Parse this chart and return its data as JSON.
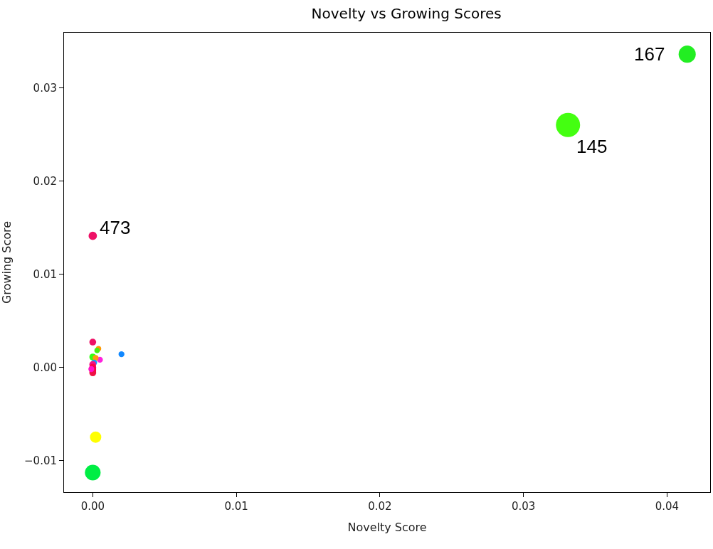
{
  "chart_data": {
    "type": "bubble",
    "title": "Novelty vs Growing Scores",
    "xlabel": "Novelty Score",
    "ylabel": "Growing Score",
    "x": [
      0.0414,
      0.0331,
      0.0,
      0.0,
      0.0002,
      0.002,
      0.0,
      0.0004,
      0.0003,
      0.0005,
      0.0,
      0.0002,
      0.0001,
      0.0,
      0.0,
      0.0,
      0.0,
      0.0,
      -0.0001
    ],
    "values": [
      0.0336,
      0.026,
      0.0141,
      -0.0113,
      -0.0075,
      0.0014,
      0.0027,
      0.002,
      0.0018,
      0.0008,
      0.0011,
      0.001,
      0.0005,
      0.0003,
      0.0,
      -0.0002,
      -0.0004,
      -0.0006,
      -0.0002
    ],
    "sizes": [
      0.5,
      1,
      0.12,
      0.42,
      0.22,
      0.06,
      0.08,
      0.05,
      0.05,
      0.06,
      0.08,
      0.06,
      0.06,
      0.08,
      0.08,
      0.08,
      0.08,
      0.08,
      0.06
    ],
    "colors": [
      "#22ee22",
      "#44ff11",
      "#ee1166",
      "#00ee44",
      "#ffff00",
      "#1188ff",
      "#ee1166",
      "#ff9900",
      "#44ee11",
      "#ff22dd",
      "#33ff11",
      "#ff9911",
      "#1199ff",
      "#ee1188",
      "#ff0044",
      "#ee0055",
      "#ff0033",
      "#ee1144",
      "#ff11cc"
    ],
    "annotations": [
      {
        "text": "167",
        "x": 0.0414,
        "y": 0.0336
      },
      {
        "text": "145",
        "x": 0.0331,
        "y": 0.026
      },
      {
        "text": "473",
        "x": 0.0,
        "y": 0.0141
      }
    ],
    "xlim": [
      -0.002,
      0.043
    ],
    "ylim": [
      -0.0134,
      0.0359
    ],
    "xticks": [
      {
        "value": 0,
        "label": "0.00"
      },
      0.01,
      0.02,
      0.03,
      0.04
    ],
    "yticks": [
      {
        "value": -0.01,
        "label": "−0.01"
      },
      {
        "value": 0,
        "label": "0.00"
      },
      0.01,
      0.02,
      0.03
    ]
  }
}
